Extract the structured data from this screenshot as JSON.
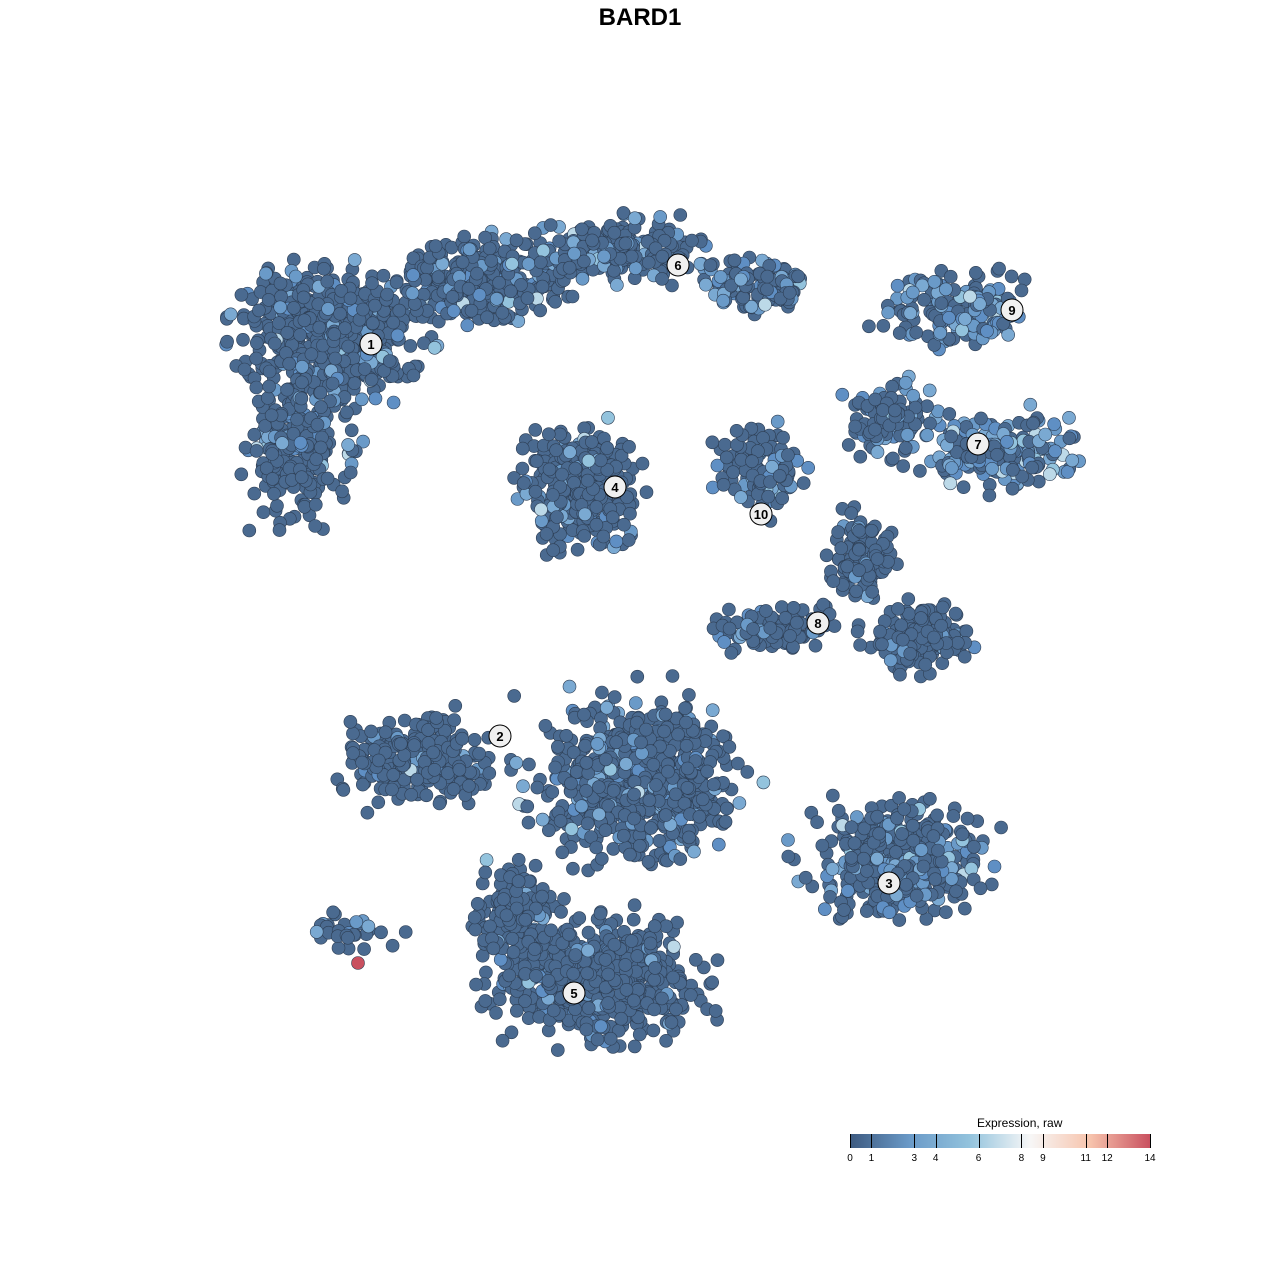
{
  "chart_data": {
    "type": "scatter",
    "title": "BARD1",
    "xlabel": "",
    "ylabel": "",
    "grid": false,
    "cluster_labels": [
      "1",
      "2",
      "3",
      "4",
      "5",
      "6",
      "7",
      "8",
      "9",
      "10"
    ],
    "legend": {
      "title": "Expression, raw",
      "placement": "bottom-right",
      "range": [
        0,
        14
      ],
      "ticks": [
        0,
        1,
        3,
        4,
        6,
        8,
        9,
        11,
        12,
        14
      ],
      "tick_labels": [
        "0",
        "1",
        "3",
        "4",
        "6",
        "8",
        "9",
        "11",
        "12",
        "14"
      ],
      "colors": [
        "#3d5a80",
        "#6a9ac8",
        "#93c3dd",
        "#f7f7f7",
        "#f7c4ad",
        "#c9505f"
      ]
    },
    "point_color_dominant": "#4a6a90",
    "max_expression_point_color": "#c9505f"
  }
}
